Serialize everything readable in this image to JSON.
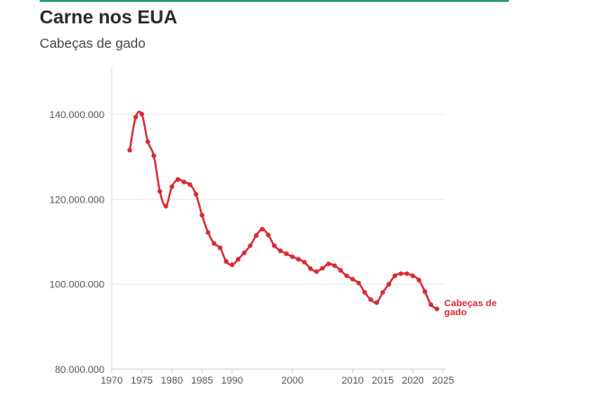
{
  "header": {
    "title": "Carne nos EUA",
    "subtitle": "Cabeças de gado"
  },
  "chart_data": {
    "type": "line",
    "title": "Carne nos EUA",
    "subtitle": "Cabeças de gado",
    "xlabel": "",
    "ylabel": "",
    "xlim": [
      1970,
      2025
    ],
    "ylim": [
      80000000,
      150000000
    ],
    "x_ticks": [
      1970,
      1975,
      1980,
      1985,
      1990,
      2000,
      2010,
      2015,
      2020,
      2025
    ],
    "y_ticks": [
      80000000,
      100000000,
      120000000,
      140000000
    ],
    "y_tick_labels": [
      "80.000.000",
      "100.000.000",
      "120.000.000",
      "140.000.000"
    ],
    "grid": "horizontal",
    "legend": "none",
    "series": [
      {
        "name": "Cabeças de gado",
        "color": "#d92b35",
        "x": [
          1973,
          1974,
          1975,
          1976,
          1977,
          1978,
          1979,
          1980,
          1981,
          1982,
          1983,
          1984,
          1985,
          1986,
          1987,
          1988,
          1989,
          1990,
          1991,
          1992,
          1993,
          1994,
          1995,
          1996,
          1997,
          1998,
          1999,
          2000,
          2001,
          2002,
          2003,
          2004,
          2005,
          2006,
          2007,
          2008,
          2009,
          2010,
          2011,
          2012,
          2013,
          2014,
          2015,
          2016,
          2017,
          2018,
          2019,
          2020,
          2021,
          2022,
          2023,
          2024
        ],
        "values": [
          131600000,
          139400000,
          140100000,
          133600000,
          130300000,
          121900000,
          118400000,
          123000000,
          124700000,
          124100000,
          123500000,
          121200000,
          116300000,
          112200000,
          109600000,
          108600000,
          105400000,
          104600000,
          105900000,
          107400000,
          109100000,
          111500000,
          113000000,
          111600000,
          109100000,
          107900000,
          107200000,
          106500000,
          105900000,
          105200000,
          103700000,
          103000000,
          103800000,
          104800000,
          104400000,
          103300000,
          102000000,
          101200000,
          100300000,
          98100000,
          96400000,
          95700000,
          98100000,
          100000000,
          102000000,
          102500000,
          102500000,
          102000000,
          101000000,
          98300000,
          95200000,
          94200000
        ]
      }
    ]
  }
}
